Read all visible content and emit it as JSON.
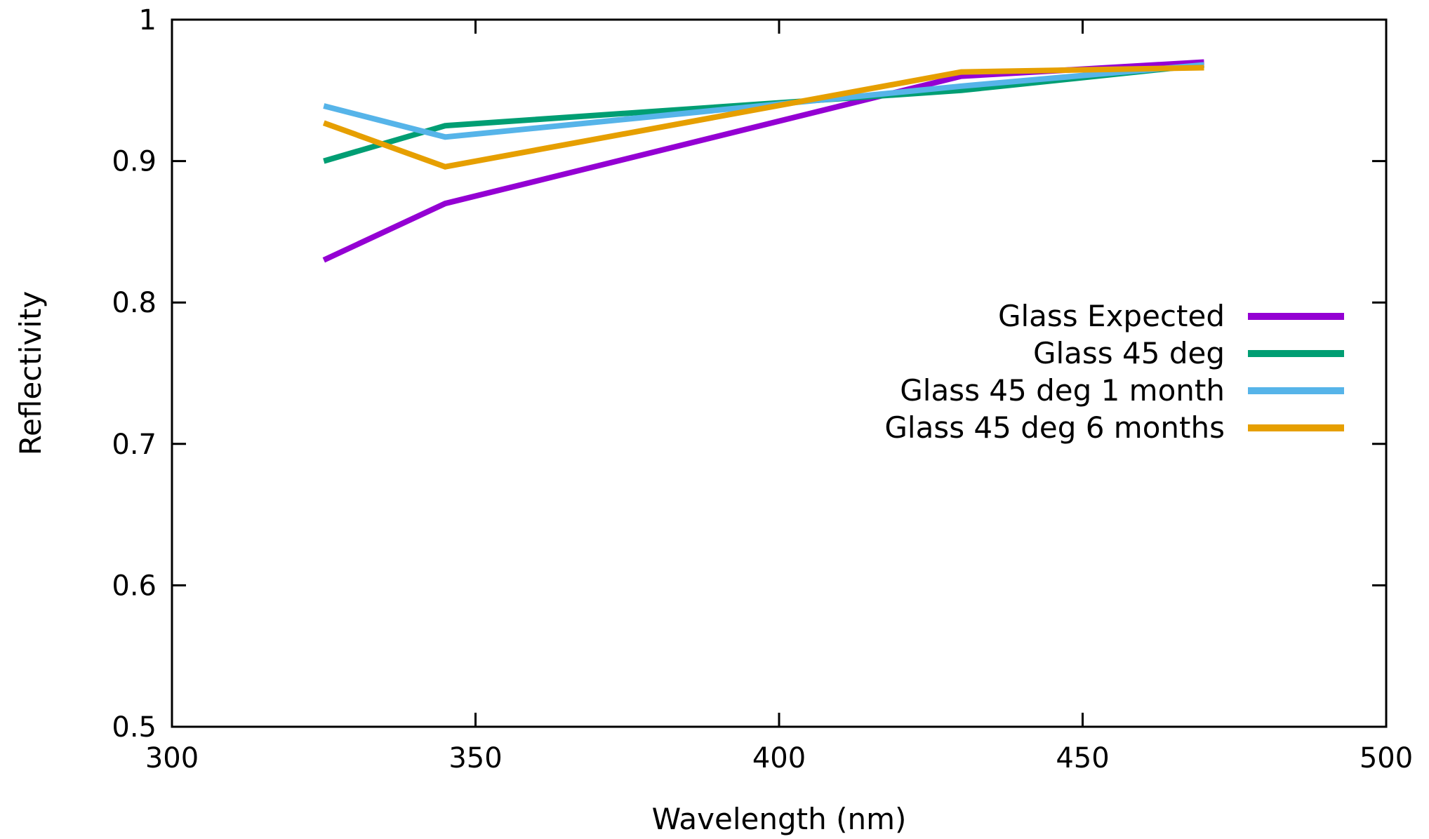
{
  "chart_data": {
    "type": "line",
    "title": "",
    "xlabel": "Wavelength (nm)",
    "ylabel": "Reflectivity",
    "xlim": [
      300,
      500
    ],
    "ylim": [
      0.5,
      1.0
    ],
    "x_ticks": [
      300,
      350,
      400,
      450,
      500
    ],
    "x_tick_labels": [
      "300",
      "350",
      "400",
      "450",
      "500"
    ],
    "y_ticks": [
      0.5,
      0.6,
      0.7,
      0.8,
      0.9,
      1.0
    ],
    "y_tick_labels": [
      "0.5",
      "0.6",
      "0.7",
      "0.8",
      "0.9",
      "1"
    ],
    "grid": false,
    "legend_position": "right",
    "x": [
      325,
      345,
      430,
      470
    ],
    "series": [
      {
        "name": "Glass Expected",
        "color": "#9400d3",
        "values": [
          0.83,
          0.87,
          0.96,
          0.97
        ]
      },
      {
        "name": "Glass 45 deg",
        "color": "#009e73",
        "values": [
          0.9,
          0.925,
          0.95,
          0.968
        ]
      },
      {
        "name": "Glass 45 deg 1 month",
        "color": "#56b4e9",
        "values": [
          0.939,
          0.917,
          0.953,
          0.968
        ]
      },
      {
        "name": "Glass 45 deg 6 months",
        "color": "#e69f00",
        "values": [
          0.927,
          0.896,
          0.963,
          0.966
        ]
      }
    ]
  }
}
